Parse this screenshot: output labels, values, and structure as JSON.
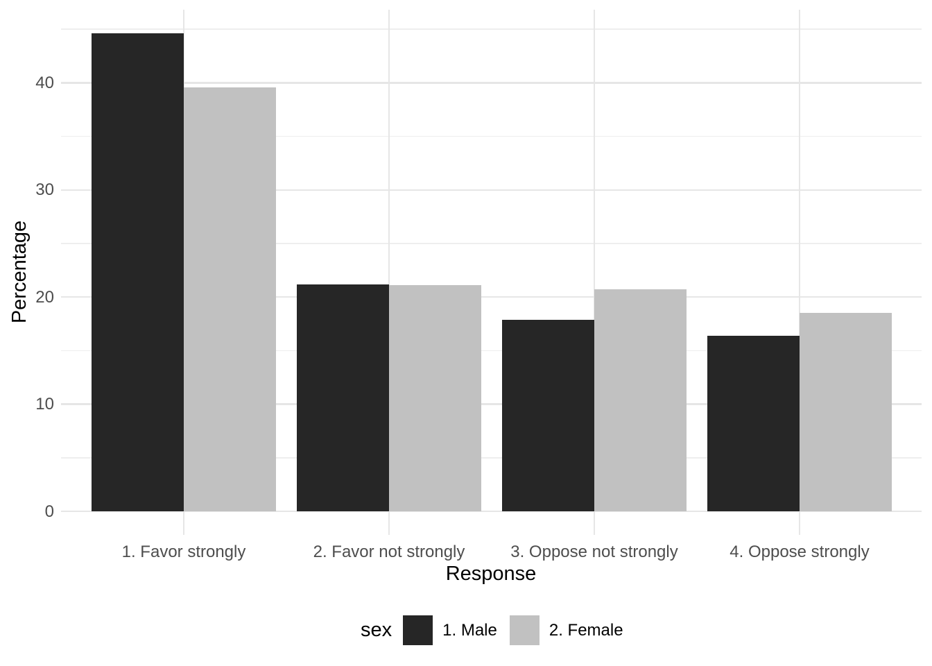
{
  "chart_data": {
    "type": "bar",
    "mode": "grouped",
    "title": "",
    "xlabel": "Response",
    "ylabel": "Percentage",
    "categories": [
      "1. Favor strongly",
      "2. Favor not strongly",
      "3. Oppose not strongly",
      "4. Oppose strongly"
    ],
    "series": [
      {
        "name": "1. Male",
        "color": "#262626",
        "values": [
          44.6,
          21.2,
          17.9,
          16.4
        ]
      },
      {
        "name": "2. Female",
        "color": "#c1c1c1",
        "values": [
          39.6,
          21.1,
          20.7,
          18.5
        ]
      }
    ],
    "legend": {
      "title": "sex",
      "position": "bottom",
      "entries": [
        "1. Male",
        "2. Female"
      ]
    },
    "ylim": [
      0,
      46.8
    ],
    "yticks": [
      0,
      10,
      20,
      30,
      40
    ],
    "yticks_minor": [
      5,
      15,
      25,
      35,
      45
    ],
    "grid": "on",
    "colors": {
      "background": "#ffffff",
      "grid_major": "#e6e6e6",
      "grid_minor": "#eeeeee",
      "axis_text": "#4d4d4d",
      "title_text": "#000000"
    }
  }
}
